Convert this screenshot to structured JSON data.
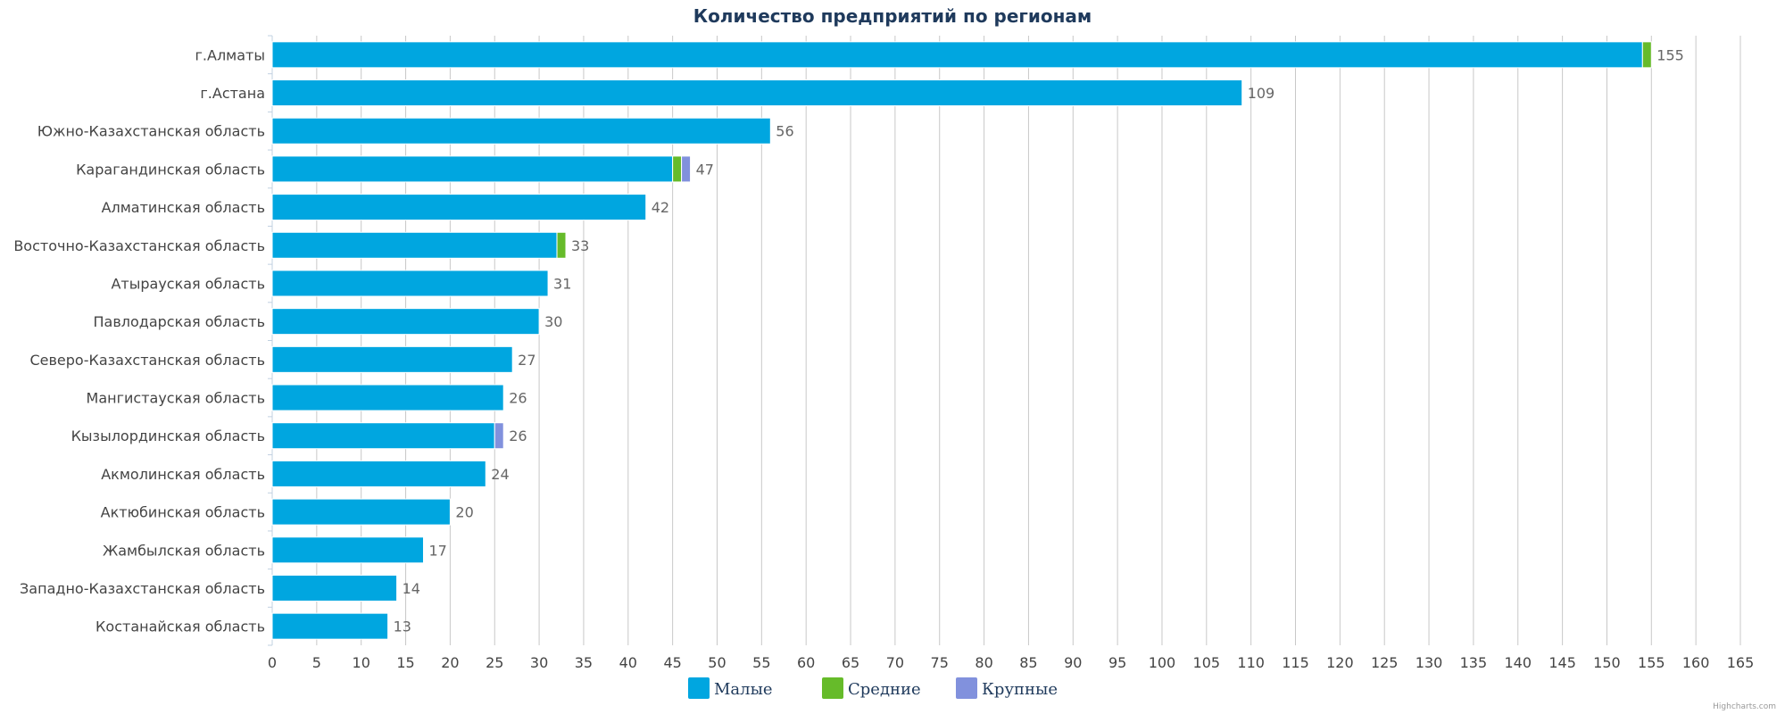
{
  "chart_data": {
    "type": "bar",
    "orientation": "horizontal",
    "stacked": true,
    "title": "Количество предприятий по регионам",
    "categories": [
      "г.Алматы",
      "г.Астана",
      "Южно-Казахстанская область",
      "Карагандинская область",
      "Алматинская область",
      "Восточно-Казахстанская область",
      "Атырауская область",
      "Павлодарская область",
      "Северо-Казахстанская область",
      "Мангистауская область",
      "Кызылординская область",
      "Акмолинская область",
      "Актюбинская область",
      "Жамбылская область",
      "Западно-Казахстанская область",
      "Костанайская область"
    ],
    "series": [
      {
        "name": "Малые",
        "color": "#00a6e0",
        "values": [
          154,
          109,
          56,
          45,
          42,
          32,
          31,
          30,
          27,
          26,
          25,
          24,
          20,
          17,
          14,
          13
        ]
      },
      {
        "name": "Средние",
        "color": "#66bb2a",
        "values": [
          1,
          0,
          0,
          1,
          0,
          1,
          0,
          0,
          0,
          0,
          0,
          0,
          0,
          0,
          0,
          0
        ]
      },
      {
        "name": "Крупные",
        "color": "#8191dd",
        "values": [
          0,
          0,
          0,
          1,
          0,
          0,
          0,
          0,
          0,
          0,
          1,
          0,
          0,
          0,
          0,
          0
        ]
      }
    ],
    "totals": [
      155,
      109,
      56,
      47,
      42,
      33,
      31,
      30,
      27,
      26,
      26,
      24,
      20,
      17,
      14,
      13
    ],
    "xlim": [
      0,
      165
    ],
    "tick_interval": 5,
    "grid": true,
    "legend_position": "bottom-center",
    "credit": "Highcharts.com"
  }
}
